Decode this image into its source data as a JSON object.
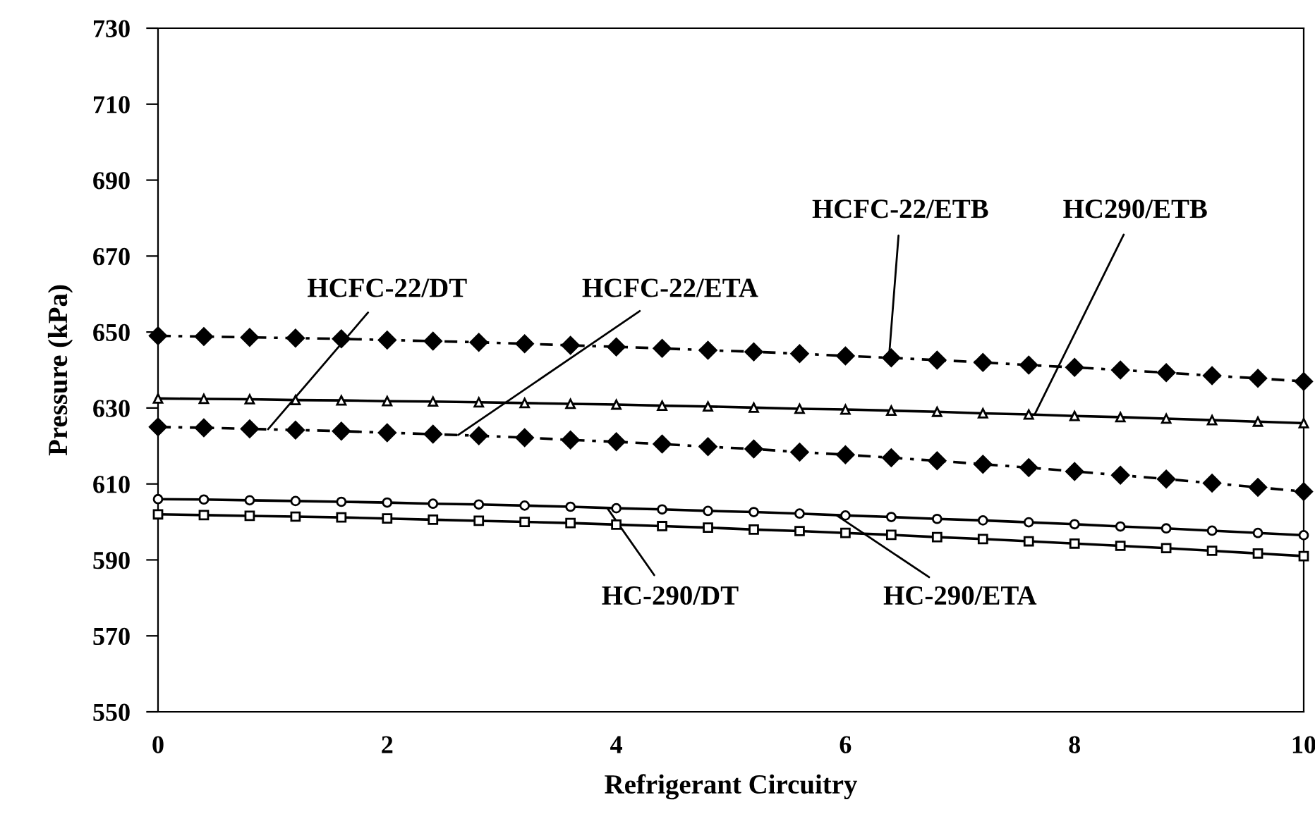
{
  "chart_data": {
    "type": "line",
    "xlabel": "Refrigerant Circuitry",
    "ylabel": "Pressure (kPa)",
    "xlim": [
      0,
      10
    ],
    "xticks": [
      0,
      2,
      4,
      6,
      8,
      10
    ],
    "ylim": [
      550,
      730
    ],
    "yticks": [
      550,
      570,
      590,
      610,
      630,
      650,
      670,
      690,
      710,
      730
    ],
    "grid": false,
    "legend": false,
    "x": [
      0,
      0.4,
      0.8,
      1.2,
      1.6,
      2.0,
      2.4,
      2.8,
      3.2,
      3.6,
      4.0,
      4.4,
      4.8,
      5.2,
      5.6,
      6.0,
      6.4,
      6.8,
      7.2,
      7.6,
      8.0,
      8.4,
      8.8,
      9.2,
      9.6,
      10
    ],
    "series": [
      {
        "color": "#000000",
        "marker": "diamond",
        "line_style": "dashed",
        "values": [
          649,
          648.8,
          648.6,
          648.4,
          648.2,
          647.9,
          647.6,
          647.3,
          646.9,
          646.5,
          646.1,
          645.7,
          645.2,
          644.8,
          644.3,
          643.7,
          643.2,
          642.6,
          642.0,
          641.3,
          640.7,
          640.0,
          639.3,
          638.5,
          637.8,
          637
        ]
      },
      {
        "color": "#000000",
        "marker": "triangle",
        "line_style": "solid",
        "values": [
          632.5,
          632.4,
          632.3,
          632.1,
          632.0,
          631.8,
          631.7,
          631.5,
          631.3,
          631.1,
          630.9,
          630.6,
          630.4,
          630.1,
          629.8,
          629.6,
          629.3,
          629.0,
          628.6,
          628.3,
          627.9,
          627.6,
          627.2,
          626.8,
          626.4,
          626
        ]
      },
      {
        "color": "#000000",
        "marker": "diamond",
        "line_style": "dashed",
        "values": [
          625,
          624.8,
          624.5,
          624.2,
          623.9,
          623.5,
          623.1,
          622.7,
          622.2,
          621.6,
          621.1,
          620.5,
          619.8,
          619.2,
          618.4,
          617.7,
          616.9,
          616.1,
          615.2,
          614.3,
          613.3,
          612.3,
          611.3,
          610.2,
          609.1,
          608
        ]
      },
      {
        "color": "#000000",
        "marker": "circle",
        "line_style": "solid",
        "values": [
          606,
          605.9,
          605.7,
          605.5,
          605.3,
          605.1,
          604.8,
          604.6,
          604.3,
          604.0,
          603.6,
          603.3,
          602.9,
          602.6,
          602.2,
          601.7,
          601.3,
          600.8,
          600.4,
          599.9,
          599.4,
          598.8,
          598.3,
          597.7,
          597.1,
          596.5
        ]
      },
      {
        "color": "#000000",
        "marker": "square",
        "line_style": "solid",
        "values": [
          602,
          601.8,
          601.6,
          601.4,
          601.2,
          600.9,
          600.6,
          600.3,
          600.0,
          599.7,
          599.3,
          598.9,
          598.5,
          598.0,
          597.6,
          597.1,
          596.6,
          596.0,
          595.5,
          594.9,
          594.3,
          593.7,
          593.1,
          592.4,
          591.7,
          591
        ]
      }
    ],
    "annotations": [
      {
        "text": "HCFC-22/DT",
        "x": 0.96,
        "y": 624.4
      },
      {
        "text": "HCFC-22/ETA",
        "x": 2.62,
        "y": 622.9
      },
      {
        "text": "HCFC-22/ETB",
        "x": 6.38,
        "y": 643.2
      },
      {
        "text": "HC290/ETB",
        "x": 7.65,
        "y": 628.2
      },
      {
        "text": "HC-290/DT",
        "x": 3.92,
        "y": 603.7
      },
      {
        "text": "HC-290/ETA",
        "x": 5.92,
        "y": 601.8
      }
    ]
  }
}
